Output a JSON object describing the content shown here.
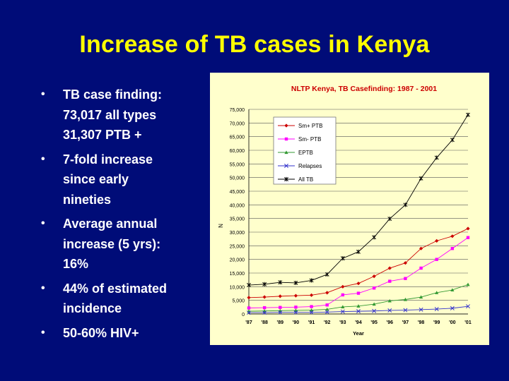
{
  "slide": {
    "title": "Increase of TB cases in Kenya",
    "bullets": [
      {
        "lines": [
          "TB case finding:",
          "73,017 all types",
          "31,307 PTB +"
        ]
      },
      {
        "lines": [
          "7-fold increase",
          "since early",
          "nineties"
        ]
      },
      {
        "lines": [
          "Average annual",
          "increase (5 yrs):",
          "16%"
        ]
      },
      {
        "lines": [
          "44% of estimated",
          "incidence"
        ]
      },
      {
        "lines": [
          "50-60% HIV+"
        ]
      }
    ],
    "bullet_glyph": "•"
  },
  "colors": {
    "background": "#000c78",
    "title": "#ffff00",
    "text": "#ffffff",
    "chart_bg": "#ffffcc",
    "chart_title": "#cc0000"
  },
  "chart_data": {
    "type": "line",
    "title": "NLTP Kenya, TB Casefinding: 1987 - 2001",
    "xlabel": "Year",
    "ylabel": "N",
    "ylim": [
      0,
      75000
    ],
    "yticks": [
      0,
      5000,
      10000,
      15000,
      20000,
      25000,
      30000,
      35000,
      40000,
      45000,
      50000,
      55000,
      60000,
      65000,
      70000,
      75000
    ],
    "ytick_labels": [
      "0",
      "5,000",
      "10,000",
      "15,000",
      "20,000",
      "25,000",
      "30,000",
      "35,000",
      "40,000",
      "45,000",
      "50,000",
      "55,000",
      "60,000",
      "65,000",
      "70,000",
      "75,000"
    ],
    "categories": [
      "'87",
      "'88",
      "'89",
      "'90",
      "'91",
      "'92",
      "'93",
      "'94",
      "'95",
      "'96",
      "'97",
      "'98",
      "'99",
      "'00",
      "'01"
    ],
    "legend_position": "top-left",
    "series": [
      {
        "name": "Sm+ PTB",
        "color": "#cc0000",
        "marker": "diamond",
        "values": [
          6000,
          6200,
          6500,
          6700,
          6900,
          7800,
          10000,
          11200,
          13800,
          16800,
          18700,
          24000,
          26800,
          28500,
          31307
        ]
      },
      {
        "name": "Sm- PTB",
        "color": "#ff00ff",
        "marker": "square",
        "values": [
          2200,
          2300,
          2400,
          2500,
          2700,
          3300,
          7000,
          7600,
          9500,
          12000,
          13000,
          16800,
          20000,
          24000,
          28000
        ]
      },
      {
        "name": "EPTB",
        "color": "#339933",
        "marker": "triangle",
        "values": [
          1000,
          1100,
          1200,
          1300,
          1400,
          1700,
          2600,
          2900,
          3600,
          4800,
          5300,
          6200,
          7800,
          8800,
          10800
        ]
      },
      {
        "name": "Relapses",
        "color": "#3333cc",
        "marker": "x",
        "values": [
          500,
          500,
          600,
          600,
          600,
          700,
          900,
          1000,
          1100,
          1300,
          1400,
          1600,
          1800,
          2100,
          2800
        ]
      },
      {
        "name": "All TB",
        "color": "#000000",
        "marker": "star",
        "values": [
          10600,
          10900,
          11600,
          11400,
          12300,
          14500,
          20400,
          22800,
          28100,
          34900,
          40000,
          49700,
          57300,
          63800,
          73017
        ]
      }
    ]
  }
}
